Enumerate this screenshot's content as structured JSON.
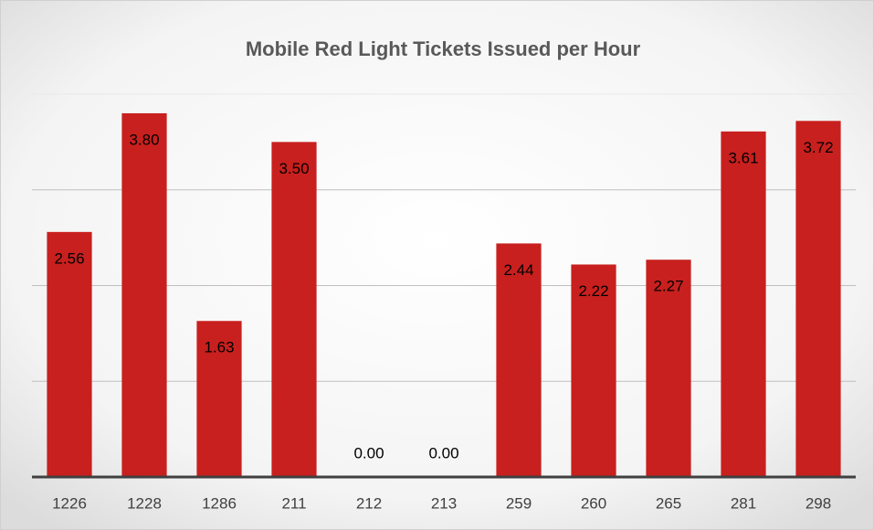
{
  "chart_data": {
    "type": "bar",
    "title": "Mobile Red Light Tickets Issued per Hour",
    "categories": [
      "1226",
      "1228",
      "1286",
      "211",
      "212",
      "213",
      "259",
      "260",
      "265",
      "281",
      "298"
    ],
    "values": [
      2.56,
      3.8,
      1.63,
      3.5,
      0,
      0,
      2.44,
      2.22,
      2.27,
      3.61,
      3.72
    ],
    "value_labels": [
      "2.56",
      "3.80",
      "1.63",
      "3.50",
      "0.00",
      "0.00",
      "2.44",
      "2.22",
      "2.27",
      "3.61",
      "3.72"
    ],
    "color": "#c8201e",
    "ylim": [
      0,
      4
    ],
    "yticks": [
      0,
      1,
      2,
      3,
      4
    ],
    "grid": true
  }
}
